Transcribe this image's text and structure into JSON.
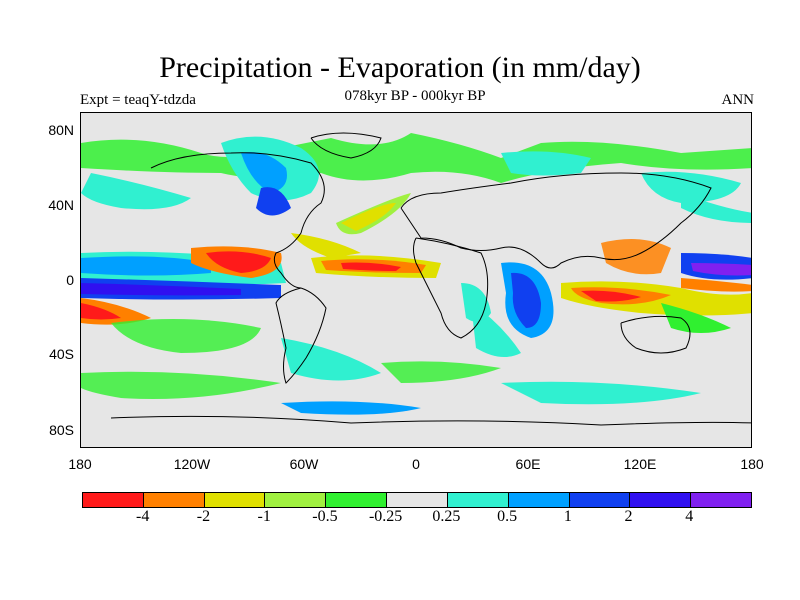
{
  "title": "Precipitation - Evaporation (in mm/day)",
  "subtitle": "078kyr BP - 000kyr BP",
  "left_label": "Expt = teaqY-tdzda",
  "right_label": "ANN",
  "lat_labels": [
    "80N",
    "40N",
    "0",
    "40S",
    "80S"
  ],
  "lon_labels": [
    "180",
    "120W",
    "60W",
    "0",
    "60E",
    "120E",
    "180"
  ],
  "colorbar": {
    "colors": [
      "#ff1a1a",
      "#ff8000",
      "#e0e000",
      "#a0f040",
      "#30f030",
      "#e6e6e6",
      "#30f0d0",
      "#00a0ff",
      "#1040f0",
      "#3010f0",
      "#8020f0"
    ],
    "labels": [
      "-4",
      "-2",
      "-1",
      "-0.5",
      "-0.25",
      "0.25",
      "0.5",
      "1",
      "2",
      "4"
    ]
  }
}
